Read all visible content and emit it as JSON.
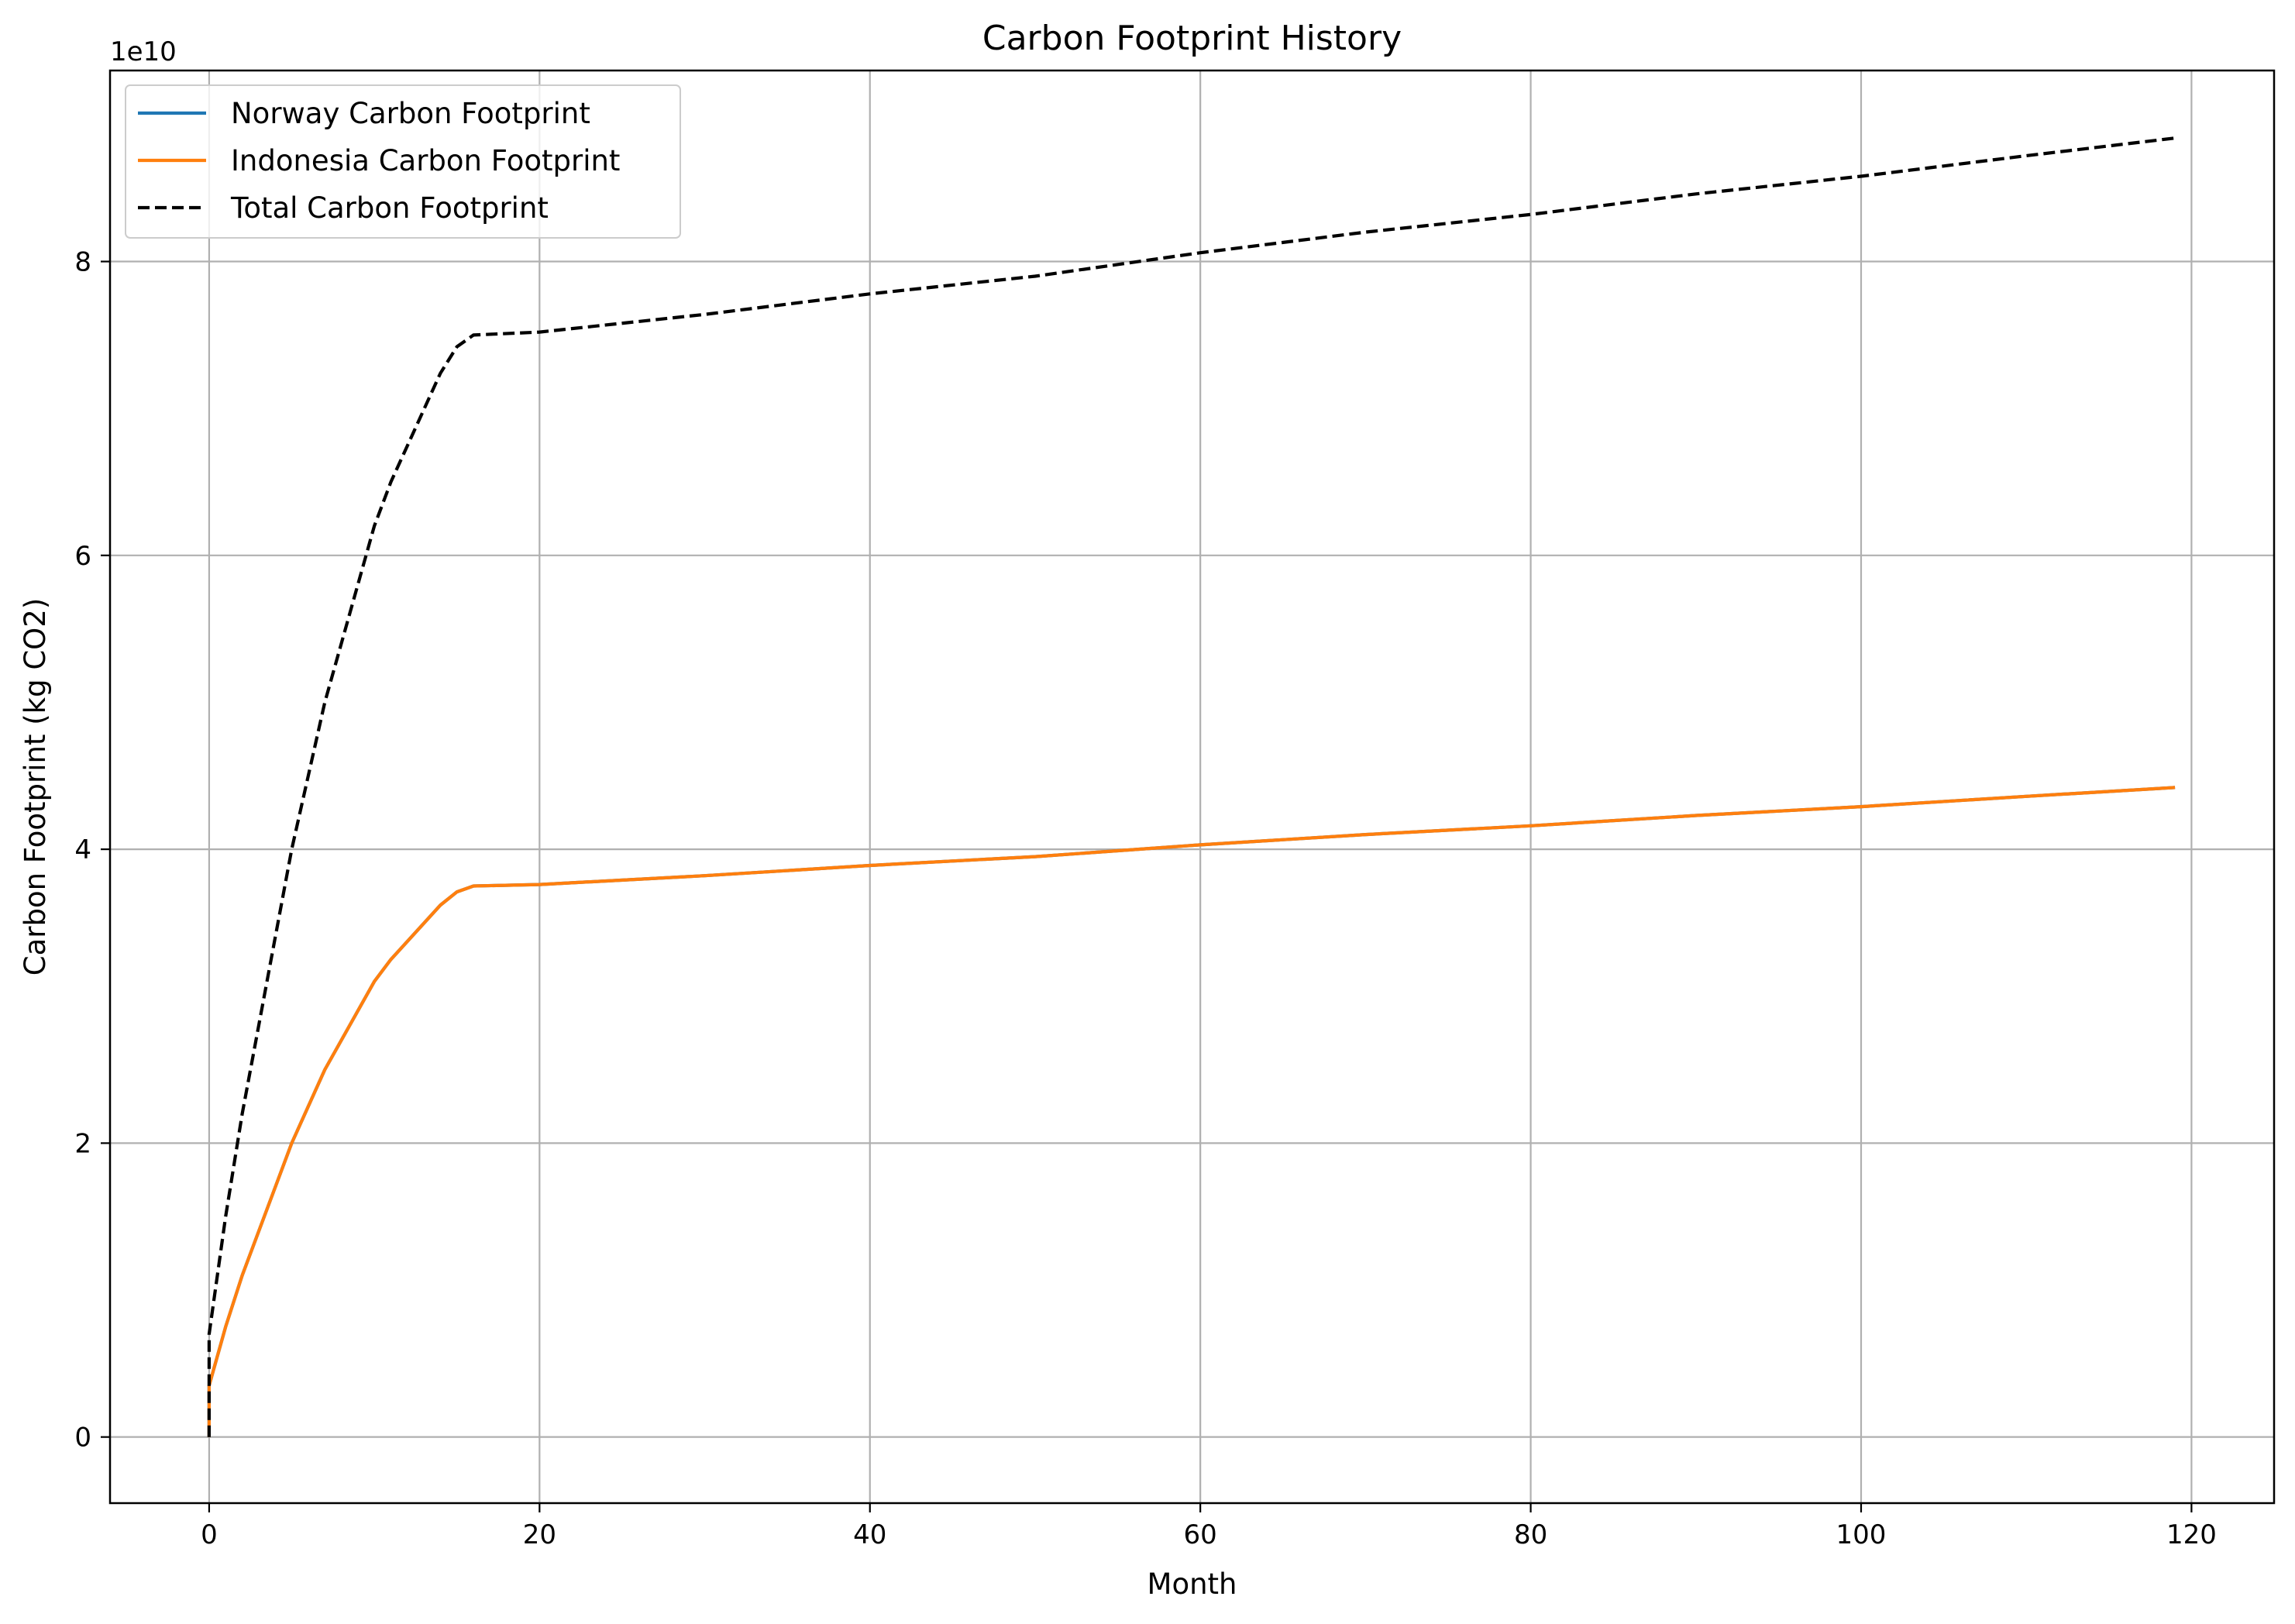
{
  "chart_data": {
    "type": "line",
    "title": "Carbon Footprint History",
    "xlabel": "Month",
    "ylabel": "Carbon Footprint (kg CO2)",
    "y_offset_label": "1e10",
    "xlim": [
      -6,
      125
    ],
    "ylim": [
      -0.45,
      9.3
    ],
    "y_unit_multiplier": 10000000000,
    "x_ticks": [
      0,
      20,
      40,
      60,
      80,
      100,
      120
    ],
    "x_tick_labels": [
      "0",
      "20",
      "40",
      "60",
      "80",
      "100",
      "120"
    ],
    "y_ticks": [
      0,
      2,
      4,
      6,
      8
    ],
    "y_tick_labels": [
      "0",
      "2",
      "4",
      "6",
      "8"
    ],
    "grid": true,
    "legend_position": "upper-left",
    "series": [
      {
        "name": "Norway Carbon Footprint",
        "color": "#1f77b4",
        "style": "solid",
        "x": [
          0,
          0,
          1,
          2,
          4,
          5,
          7,
          10,
          11,
          14,
          15,
          16,
          20,
          30,
          40,
          50,
          60,
          70,
          80,
          90,
          100,
          110,
          119
        ],
        "y": [
          0,
          0.35,
          0.75,
          1.1,
          1.7,
          2.0,
          2.5,
          3.1,
          3.25,
          3.62,
          3.71,
          3.75,
          3.76,
          3.82,
          3.89,
          3.95,
          4.03,
          4.1,
          4.16,
          4.23,
          4.29,
          4.36,
          4.42
        ]
      },
      {
        "name": "Indonesia Carbon Footprint",
        "color": "#ff7f0e",
        "style": "solid",
        "x": [
          0,
          0,
          1,
          2,
          4,
          5,
          7,
          10,
          11,
          14,
          15,
          16,
          20,
          30,
          40,
          50,
          60,
          70,
          80,
          90,
          100,
          110,
          119
        ],
        "y": [
          0,
          0.35,
          0.75,
          1.1,
          1.7,
          2.0,
          2.5,
          3.1,
          3.25,
          3.62,
          3.71,
          3.75,
          3.76,
          3.82,
          3.89,
          3.95,
          4.03,
          4.1,
          4.16,
          4.23,
          4.29,
          4.36,
          4.42
        ]
      },
      {
        "name": "Total Carbon Footprint",
        "color": "#000000",
        "style": "dashed",
        "x": [
          0,
          0,
          1,
          2,
          4,
          5,
          7,
          10,
          11,
          14,
          15,
          16,
          20,
          30,
          40,
          50,
          60,
          70,
          80,
          90,
          100,
          110,
          119
        ],
        "y": [
          0,
          0.7,
          1.5,
          2.2,
          3.4,
          4.0,
          5.0,
          6.2,
          6.5,
          7.24,
          7.42,
          7.5,
          7.52,
          7.64,
          7.78,
          7.9,
          8.06,
          8.2,
          8.32,
          8.46,
          8.58,
          8.72,
          8.84
        ]
      }
    ]
  }
}
